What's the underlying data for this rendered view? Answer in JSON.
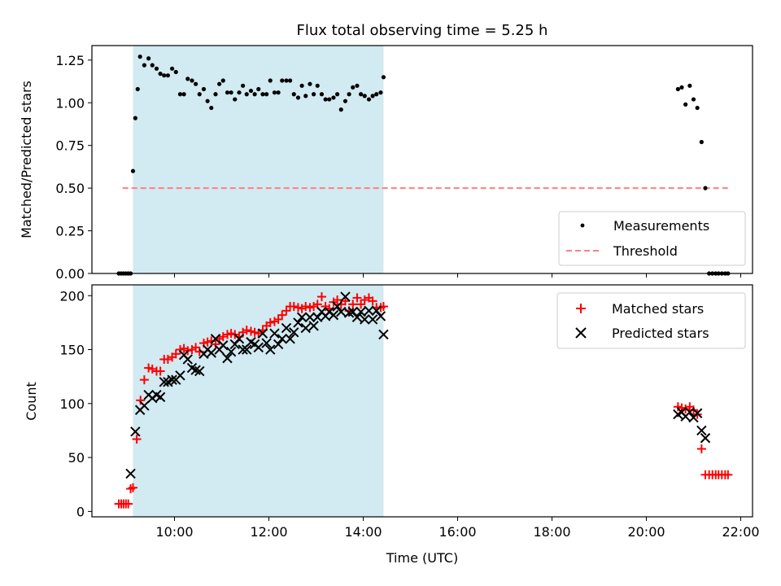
{
  "chart_data": [
    {
      "type": "scatter",
      "title": "Flux total observing time = 5.25 h",
      "xlabel": "",
      "ylabel": "Matched/Predicted stars",
      "xlim": [
        8.25,
        22.25
      ],
      "ylim": [
        0,
        1.335
      ],
      "yticks": [
        0.0,
        0.25,
        0.5,
        0.75,
        1.0,
        1.25
      ],
      "ytick_labels": [
        "0.00",
        "0.25",
        "0.50",
        "0.75",
        "1.00",
        "1.25"
      ],
      "shaded_span": {
        "x_start": 9.12,
        "x_end": 14.43,
        "color": "#add8e6"
      },
      "legend": {
        "placement": "lower-right",
        "entries": [
          "Measurements",
          "Threshold"
        ]
      },
      "series": [
        {
          "name": "Measurements",
          "marker": "dot",
          "color": "#000000",
          "x": [
            8.82,
            8.87,
            8.92,
            8.97,
            9.02,
            9.07,
            9.12,
            9.17,
            9.22,
            9.27,
            9.36,
            9.45,
            9.53,
            9.62,
            9.7,
            9.78,
            9.86,
            9.95,
            10.03,
            10.12,
            10.2,
            10.28,
            10.37,
            10.45,
            10.53,
            10.62,
            10.7,
            10.78,
            10.87,
            10.95,
            11.03,
            11.12,
            11.2,
            11.28,
            11.37,
            11.45,
            11.53,
            11.62,
            11.7,
            11.78,
            11.87,
            11.95,
            12.03,
            12.12,
            12.2,
            12.28,
            12.37,
            12.45,
            12.53,
            12.62,
            12.7,
            12.78,
            12.87,
            12.95,
            13.03,
            13.12,
            13.2,
            13.28,
            13.37,
            13.45,
            13.53,
            13.62,
            13.7,
            13.78,
            13.87,
            13.95,
            14.03,
            14.12,
            14.2,
            14.28,
            14.37,
            14.43,
            20.67,
            20.75,
            20.83,
            20.92,
            21.0,
            21.08,
            21.17,
            21.25,
            21.33,
            21.4,
            21.47,
            21.53,
            21.6,
            21.67,
            21.73
          ],
          "values": [
            0.0,
            0.0,
            0.0,
            0.0,
            0.0,
            0.0,
            0.6,
            0.91,
            1.08,
            1.27,
            1.22,
            1.26,
            1.22,
            1.2,
            1.17,
            1.16,
            1.16,
            1.2,
            1.18,
            1.05,
            1.05,
            1.14,
            1.13,
            1.11,
            1.05,
            1.08,
            1.01,
            0.97,
            1.05,
            1.11,
            1.13,
            1.06,
            1.06,
            1.02,
            1.06,
            1.1,
            1.05,
            1.07,
            1.05,
            1.08,
            1.05,
            1.05,
            1.13,
            1.06,
            1.06,
            1.13,
            1.13,
            1.13,
            1.05,
            1.03,
            1.1,
            1.04,
            1.11,
            1.05,
            1.1,
            1.05,
            1.02,
            1.02,
            1.03,
            1.05,
            0.96,
            1.01,
            1.05,
            1.09,
            1.1,
            1.05,
            1.04,
            1.02,
            1.04,
            1.05,
            1.06,
            1.15,
            1.08,
            1.09,
            0.99,
            1.1,
            1.02,
            0.97,
            0.77,
            0.5,
            0.0,
            0.0,
            0.0,
            0.0,
            0.0,
            0.0,
            0.0
          ]
        },
        {
          "name": "Threshold",
          "marker": "dashed-line",
          "color": "#ff7f7f",
          "x": [
            8.9,
            21.75
          ],
          "values": [
            0.5,
            0.5
          ]
        }
      ]
    },
    {
      "type": "scatter",
      "title": "",
      "xlabel": "Time (UTC)",
      "ylabel": "Count",
      "xlim": [
        8.25,
        22.25
      ],
      "ylim": [
        -5,
        210
      ],
      "yticks": [
        0,
        50,
        100,
        150,
        200
      ],
      "ytick_labels": [
        "0",
        "50",
        "100",
        "150",
        "200"
      ],
      "xticks": [
        10,
        12,
        14,
        16,
        18,
        20,
        22
      ],
      "xtick_labels": [
        "10:00",
        "12:00",
        "14:00",
        "16:00",
        "18:00",
        "20:00",
        "22:00"
      ],
      "shaded_span": {
        "x_start": 9.12,
        "x_end": 14.43,
        "color": "#add8e6"
      },
      "legend": {
        "placement": "upper-right",
        "entries": [
          "Matched stars",
          "Predicted stars"
        ]
      },
      "series": [
        {
          "name": "Matched stars",
          "marker": "plus",
          "color": "#ff0000",
          "x": [
            8.82,
            8.87,
            8.92,
            8.97,
            9.02,
            9.07,
            9.12,
            9.2,
            9.28,
            9.36,
            9.45,
            9.53,
            9.62,
            9.7,
            9.78,
            9.86,
            9.95,
            10.03,
            10.12,
            10.2,
            10.28,
            10.37,
            10.45,
            10.53,
            10.62,
            10.7,
            10.78,
            10.87,
            10.95,
            11.03,
            11.12,
            11.2,
            11.28,
            11.37,
            11.45,
            11.53,
            11.62,
            11.7,
            11.78,
            11.87,
            11.95,
            12.03,
            12.12,
            12.2,
            12.28,
            12.37,
            12.45,
            12.53,
            12.62,
            12.7,
            12.78,
            12.87,
            12.95,
            13.03,
            13.12,
            13.2,
            13.28,
            13.37,
            13.45,
            13.53,
            13.62,
            13.7,
            13.78,
            13.87,
            13.95,
            14.03,
            14.12,
            14.2,
            14.28,
            14.37,
            14.43,
            20.67,
            20.75,
            20.83,
            20.92,
            21.0,
            21.08,
            21.17,
            21.25,
            21.33,
            21.4,
            21.47,
            21.53,
            21.6,
            21.67,
            21.73
          ],
          "values": [
            7,
            7,
            7,
            7,
            7,
            21,
            22,
            67,
            103,
            122,
            133,
            132,
            130,
            130,
            141,
            141,
            143,
            146,
            150,
            151,
            149,
            150,
            152,
            148,
            156,
            157,
            158,
            155,
            160,
            162,
            164,
            165,
            164,
            162,
            166,
            168,
            167,
            166,
            165,
            168,
            172,
            175,
            176,
            178,
            182,
            186,
            190,
            190,
            189,
            188,
            190,
            189,
            190,
            192,
            199,
            190,
            188,
            194,
            196,
            192,
            195,
            186,
            192,
            198,
            192,
            196,
            198,
            195,
            189,
            189,
            190,
            97,
            96,
            95,
            97,
            94,
            90,
            58,
            34,
            34,
            34,
            34,
            34,
            34,
            34,
            34
          ],
          "draw_x_fix": true
        },
        {
          "name": "Predicted stars",
          "marker": "x",
          "color": "#000000",
          "x": [
            9.07,
            9.17,
            9.27,
            9.36,
            9.45,
            9.53,
            9.62,
            9.7,
            9.78,
            9.86,
            9.95,
            10.03,
            10.12,
            10.2,
            10.28,
            10.37,
            10.45,
            10.53,
            10.62,
            10.7,
            10.78,
            10.87,
            10.95,
            11.03,
            11.12,
            11.2,
            11.28,
            11.37,
            11.45,
            11.53,
            11.62,
            11.7,
            11.78,
            11.87,
            11.95,
            12.03,
            12.12,
            12.2,
            12.28,
            12.37,
            12.45,
            12.53,
            12.62,
            12.7,
            12.78,
            12.87,
            12.95,
            13.03,
            13.12,
            13.2,
            13.28,
            13.37,
            13.45,
            13.53,
            13.62,
            13.7,
            13.78,
            13.87,
            13.95,
            14.03,
            14.12,
            14.2,
            14.28,
            14.37,
            14.43,
            20.67,
            20.75,
            20.83,
            20.92,
            21.0,
            21.08,
            21.17,
            21.25
          ],
          "values": [
            35,
            74,
            94,
            98,
            108,
            105,
            108,
            106,
            120,
            120,
            122,
            122,
            126,
            145,
            141,
            133,
            131,
            130,
            146,
            150,
            147,
            160,
            150,
            154,
            142,
            148,
            155,
            160,
            150,
            150,
            157,
            155,
            152,
            165,
            156,
            150,
            165,
            155,
            160,
            170,
            160,
            166,
            175,
            180,
            170,
            180,
            172,
            180,
            185,
            181,
            185,
            182,
            190,
            185,
            199,
            184,
            185,
            180,
            185,
            178,
            186,
            178,
            186,
            181,
            164,
            90,
            92,
            88,
            92,
            87,
            91,
            75,
            68
          ]
        }
      ]
    }
  ]
}
